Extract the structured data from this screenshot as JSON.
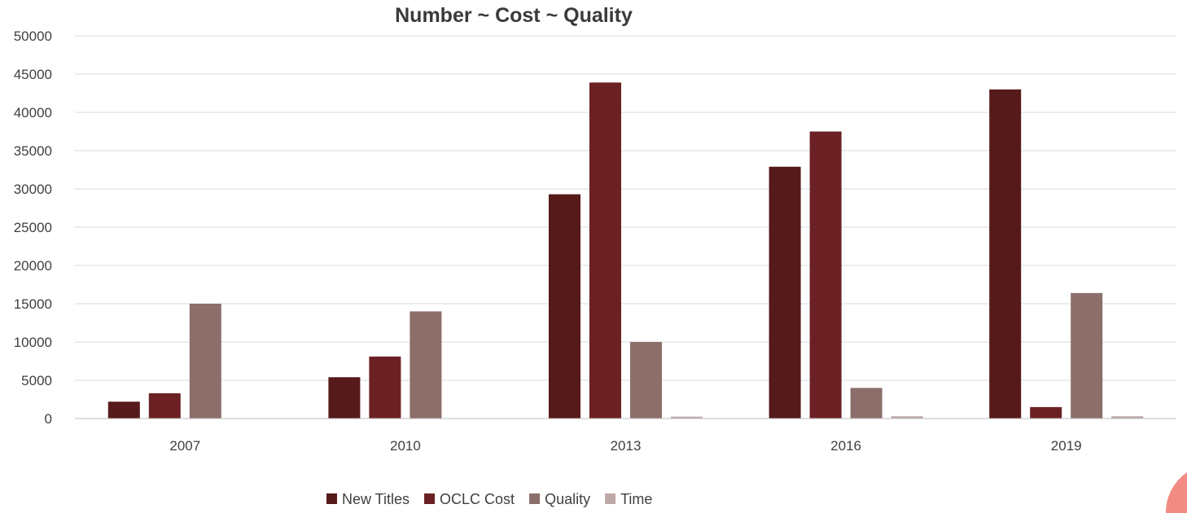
{
  "chart_data": {
    "type": "bar",
    "title": "Number ~ Cost ~ Quality",
    "xlabel": "",
    "ylabel": "",
    "categories": [
      "2007",
      "2010",
      "2013",
      "2016",
      "2019"
    ],
    "series": [
      {
        "name": "New Titles",
        "color": "#561a1a",
        "values": [
          2200,
          5400,
          29300,
          32900,
          43000
        ]
      },
      {
        "name": "OCLC Cost",
        "color": "#6b2123",
        "values": [
          3300,
          8100,
          43900,
          37500,
          1500
        ]
      },
      {
        "name": "Quality",
        "color": "#8c6e6a",
        "values": [
          15000,
          14000,
          10000,
          4000,
          16400
        ]
      },
      {
        "name": "Time",
        "color": "#bfa9a8",
        "values": [
          0,
          0,
          250,
          300,
          300
        ]
      }
    ],
    "ylim": [
      0,
      50000
    ],
    "yticks": [
      0,
      5000,
      10000,
      15000,
      20000,
      25000,
      30000,
      35000,
      40000,
      45000,
      50000
    ],
    "grid": true,
    "legend_position": "bottom"
  },
  "decoration": {
    "corner_shape_color": "#f28b82"
  }
}
